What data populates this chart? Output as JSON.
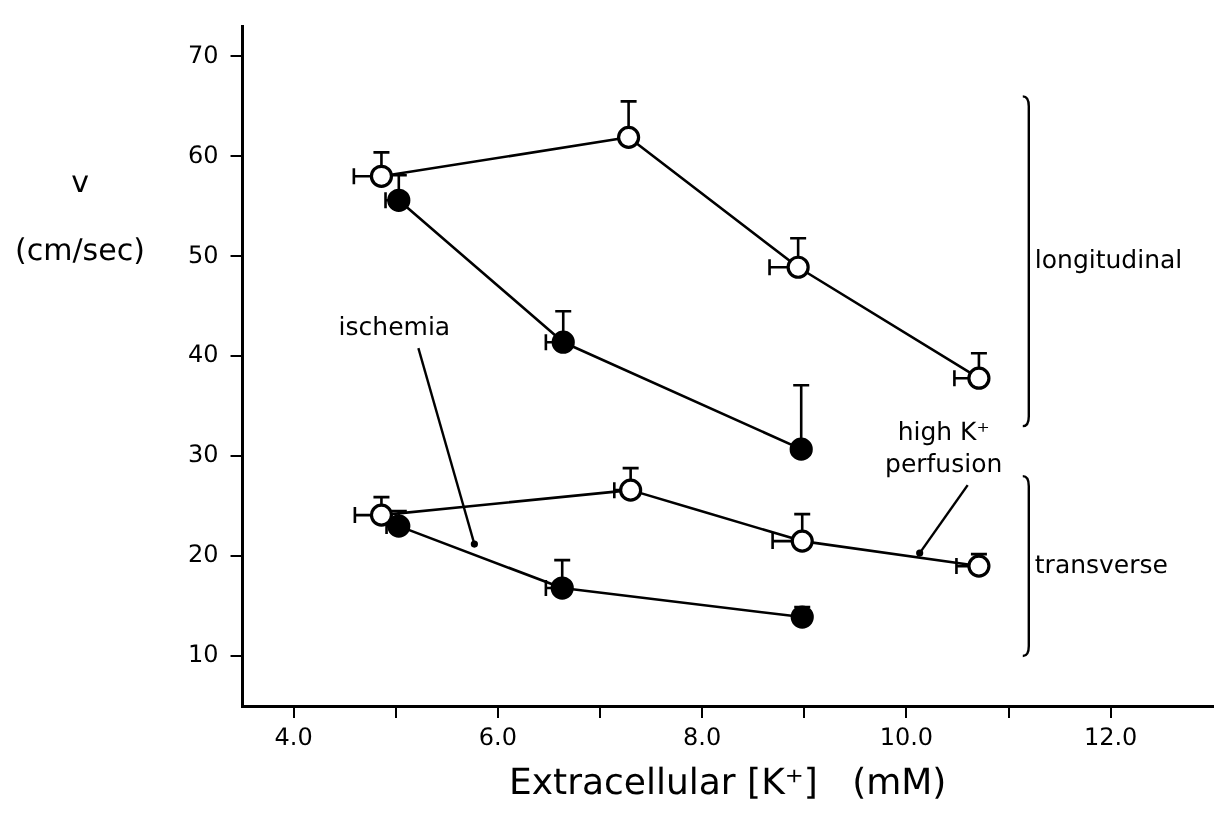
{
  "chart_data": {
    "type": "line",
    "xlabel": "Extracellular [K⁺]   (mM)",
    "ylabel": "v\n(cm/sec)",
    "xlim": [
      3.5,
      13
    ],
    "ylim": [
      5,
      73
    ],
    "xticks": [
      {
        "value": 4,
        "label": "4.0"
      },
      {
        "value": 5,
        "label": null
      },
      {
        "value": 6,
        "label": "6.0"
      },
      {
        "value": 7,
        "label": null
      },
      {
        "value": 8,
        "label": "8.0"
      },
      {
        "value": 9,
        "label": null
      },
      {
        "value": 10,
        "label": "10.0"
      },
      {
        "value": 11,
        "label": null
      },
      {
        "value": 12,
        "label": "12.0"
      }
    ],
    "yticks": [
      10,
      20,
      30,
      40,
      50,
      60,
      70
    ],
    "grid": false,
    "legend": false,
    "marker": "circle",
    "line_style": "solid",
    "series": [
      {
        "color": "#ffffff",
        "x": [
          4.86,
          7.28,
          8.94,
          10.71
        ],
        "values": [
          58.0,
          61.9,
          48.9,
          37.8
        ],
        "errors": [
          [
            58.0,
            60.4
          ],
          [
            61.9,
            65.5
          ],
          [
            48.9,
            51.8
          ],
          [
            37.8,
            40.3
          ]
        ],
        "xerrors": [
          [
            4.59,
            4.86
          ],
          [
            7.28,
            7.28
          ],
          [
            8.66,
            8.94
          ],
          [
            10.47,
            10.71
          ]
        ]
      },
      {
        "color": "#000000",
        "x": [
          5.03,
          6.64,
          8.97
        ],
        "values": [
          55.6,
          41.4,
          30.7
        ],
        "errors": [
          [
            55.6,
            58.1
          ],
          [
            41.4,
            44.5
          ],
          [
            30.7,
            37.1
          ]
        ],
        "xerrors": [
          [
            4.9,
            5.03
          ],
          [
            6.47,
            6.64
          ],
          [
            8.97,
            8.97
          ]
        ]
      },
      {
        "color": "#ffffff",
        "x": [
          4.86,
          7.3,
          8.98,
          10.71
        ],
        "values": [
          24.1,
          26.6,
          21.5,
          19.0
        ],
        "errors": [
          [
            24.1,
            25.9
          ],
          [
            26.6,
            28.8
          ],
          [
            21.5,
            24.2
          ],
          [
            19.0,
            20.2
          ]
        ],
        "xerrors": [
          [
            4.6,
            4.86
          ],
          [
            7.14,
            7.3
          ],
          [
            8.69,
            8.98
          ],
          [
            10.49,
            10.71
          ]
        ]
      },
      {
        "color": "#000000",
        "x": [
          5.03,
          6.63,
          8.98
        ],
        "values": [
          23.0,
          16.8,
          13.9
        ],
        "errors": [
          [
            23.0,
            24.5
          ],
          [
            16.8,
            19.6
          ],
          [
            13.9,
            14.9
          ]
        ],
        "xerrors": [
          [
            4.91,
            5.03
          ],
          [
            6.47,
            6.63
          ],
          [
            8.98,
            8.98
          ]
        ]
      }
    ],
    "annotations": [
      {
        "text": "ischemia",
        "x": 5.77,
        "y": 21.2
      },
      {
        "text": "high K⁺ perfusion",
        "x": 10.13,
        "y": 20.3
      },
      "longitudinal",
      "transverse"
    ]
  }
}
